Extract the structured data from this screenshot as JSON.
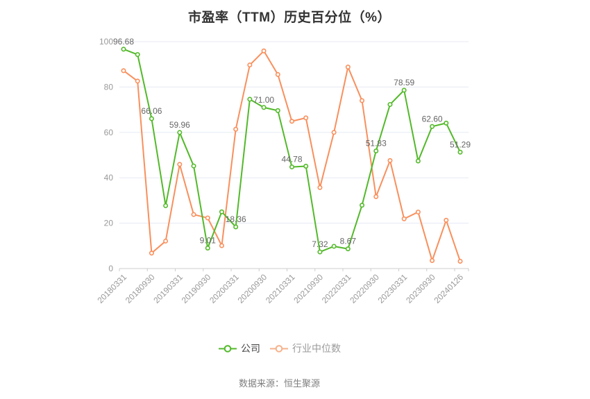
{
  "title": "市盈率（TTM）历史百分位（%）",
  "source_note": "数据来源：恒生聚源",
  "legend": {
    "items": [
      {
        "label": "公司",
        "icon_color": "#52b929"
      },
      {
        "label": "行业中位数",
        "icon_color": "#f6b18b"
      }
    ]
  },
  "chart_data": {
    "type": "line",
    "title": "市盈率（TTM）历史百分位（%）",
    "legend_position": "bottom",
    "grid": true,
    "ylim": [
      0,
      100
    ],
    "y_ticks": [
      0,
      20,
      40,
      60,
      80,
      100
    ],
    "x_tick_labels": [
      "20180331",
      "20180930",
      "20190331",
      "20190930",
      "20200331",
      "20200930",
      "20210331",
      "20210930",
      "20220331",
      "20220930",
      "20230331",
      "20230930",
      "20240126"
    ],
    "points_per_label_interval": 2,
    "series": [
      {
        "name": "公司",
        "key": "company",
        "color": "#52b929",
        "values": [
          96.68,
          94.3,
          66.06,
          27.7,
          59.96,
          45.2,
          9.01,
          25.0,
          18.36,
          74.6,
          71.0,
          69.6,
          44.78,
          45.1,
          7.32,
          9.8,
          8.67,
          27.9,
          51.83,
          72.3,
          78.59,
          47.4,
          62.6,
          64.1,
          51.29
        ],
        "labels": {
          "0": "96.68",
          "2": "66.06",
          "4": "59.96",
          "6": "9.01",
          "8": "18.36",
          "10": "71.00",
          "12": "44.78",
          "14": "7.32",
          "16": "8.67",
          "18": "51.83",
          "20": "78.59",
          "22": "62.60",
          "24": "51.29"
        }
      },
      {
        "name": "行业中位数",
        "key": "industry-median",
        "color": "#f98f5c",
        "values": [
          87.2,
          82.6,
          6.8,
          12.1,
          45.9,
          23.8,
          22.3,
          10.1,
          61.4,
          89.7,
          95.9,
          85.5,
          64.9,
          66.4,
          35.7,
          60.0,
          88.8,
          74.0,
          31.7,
          47.6,
          21.9,
          24.9,
          3.5,
          21.3,
          3.2
        ]
      }
    ],
    "style": {
      "grid_color": "#e5eaf3",
      "axis_line_color": "#cccccc",
      "axis_label_color": "#999999",
      "data_label_color": "#666666",
      "background": "#ffffff"
    }
  }
}
